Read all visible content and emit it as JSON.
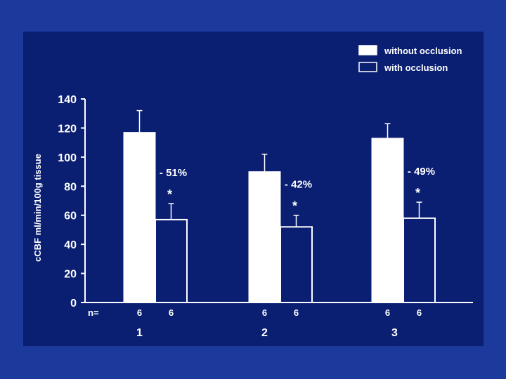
{
  "colors": {
    "background": "#1b3a9c",
    "panel": "#0a1f72",
    "foreground": "#ffffff"
  },
  "chart_data": {
    "type": "bar",
    "ylabel": "cCBF ml/min/100g tissue",
    "ylim": [
      0,
      140
    ],
    "yticks": [
      "0",
      "20",
      "40",
      "60",
      "80",
      "100",
      "120",
      "140"
    ],
    "categories": [
      "1",
      "2",
      "3"
    ],
    "n_label": "n=",
    "series": [
      {
        "name": "without occlusion",
        "fill": "solid",
        "values": [
          117,
          90,
          113
        ],
        "errors": [
          15,
          12,
          10
        ],
        "n": [
          "6",
          "6",
          "6"
        ]
      },
      {
        "name": "with occlusion",
        "fill": "outline",
        "values": [
          57,
          52,
          58
        ],
        "errors": [
          11,
          8,
          11
        ],
        "n": [
          "6",
          "6",
          "6"
        ]
      }
    ],
    "annotations": [
      {
        "category": "1",
        "percent": "- 51%",
        "marker": "*"
      },
      {
        "category": "2",
        "percent": "- 42%",
        "marker": "*"
      },
      {
        "category": "3",
        "percent": "- 49%",
        "marker": "*"
      }
    ],
    "legend_position": "top-right",
    "grid": false
  }
}
